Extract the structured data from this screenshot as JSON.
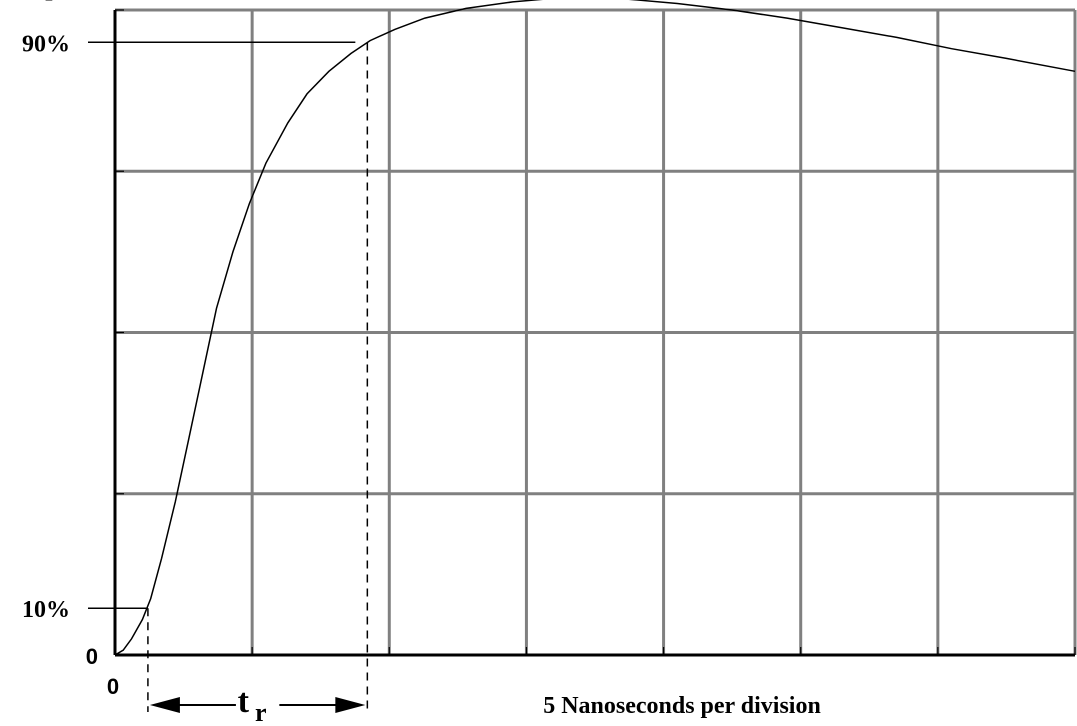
{
  "chart_data": {
    "type": "line",
    "title": "",
    "xlabel": "5 Nanoseconds per division",
    "ylabel": "",
    "xlim": [
      0,
      35
    ],
    "ylim": [
      0,
      4
    ],
    "x_divisions": 7,
    "y_divisions": 4,
    "grid": true,
    "grid_color": "#808080",
    "line_color": "#000000",
    "origin_x_label": "0",
    "origin_y_label": "0",
    "y_markers": [
      {
        "label": "10%",
        "value": 0.29
      },
      {
        "label": "90%",
        "value": 3.8
      }
    ],
    "peak_marker": {
      "label_main": "I",
      "label_sub": "pr",
      "value": 4.2,
      "x_end": 15.3
    },
    "rise_time": {
      "label_main": "t",
      "label_sub": "r",
      "x_start": 1.2,
      "x_end": 9.2
    },
    "series": [
      {
        "x": [
          0,
          0.3,
          0.6,
          1.0,
          1.3,
          1.7,
          2.2,
          2.7,
          3.2,
          3.7,
          4.3,
          4.9,
          5.5,
          6.3,
          7.0,
          7.8,
          8.6,
          9.3,
          10.2,
          11.3,
          12.8,
          14.5,
          16.5,
          18.5,
          20.5,
          22.5,
          24.5,
          26.5,
          28.5,
          30.5,
          32.5,
          35.0
        ],
        "y": [
          0,
          0.03,
          0.1,
          0.22,
          0.35,
          0.6,
          0.95,
          1.35,
          1.75,
          2.15,
          2.5,
          2.8,
          3.05,
          3.3,
          3.48,
          3.62,
          3.73,
          3.81,
          3.88,
          3.95,
          4.01,
          4.05,
          4.08,
          4.07,
          4.04,
          4.0,
          3.95,
          3.89,
          3.83,
          3.76,
          3.7,
          3.62
        ]
      }
    ]
  }
}
